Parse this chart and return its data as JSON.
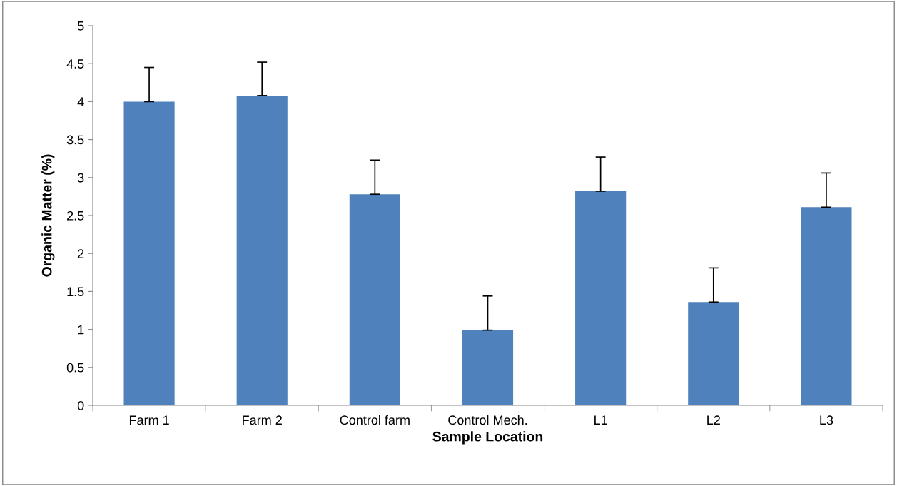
{
  "chart_data": {
    "type": "bar",
    "xlabel": "Sample Location",
    "ylabel": "Organic Matter (%)",
    "categories": [
      "Farm 1",
      "Farm 2",
      "Control farm",
      "Control Mech.",
      "L1",
      "L2",
      "L3"
    ],
    "values": [
      4.0,
      4.08,
      2.78,
      0.99,
      2.82,
      1.36,
      2.61
    ],
    "errors": [
      [
        4.0,
        4.45
      ],
      [
        4.08,
        4.52
      ],
      [
        2.78,
        3.23
      ],
      [
        0.99,
        1.44
      ],
      [
        2.82,
        3.27
      ],
      [
        1.36,
        1.81
      ],
      [
        2.61,
        3.06
      ]
    ],
    "color": "#4f81bd",
    "ylim": [
      0,
      5
    ],
    "yticks": [
      0,
      0.5,
      1,
      1.5,
      2,
      2.5,
      3,
      3.5,
      4,
      4.5,
      5
    ],
    "grid": false
  }
}
